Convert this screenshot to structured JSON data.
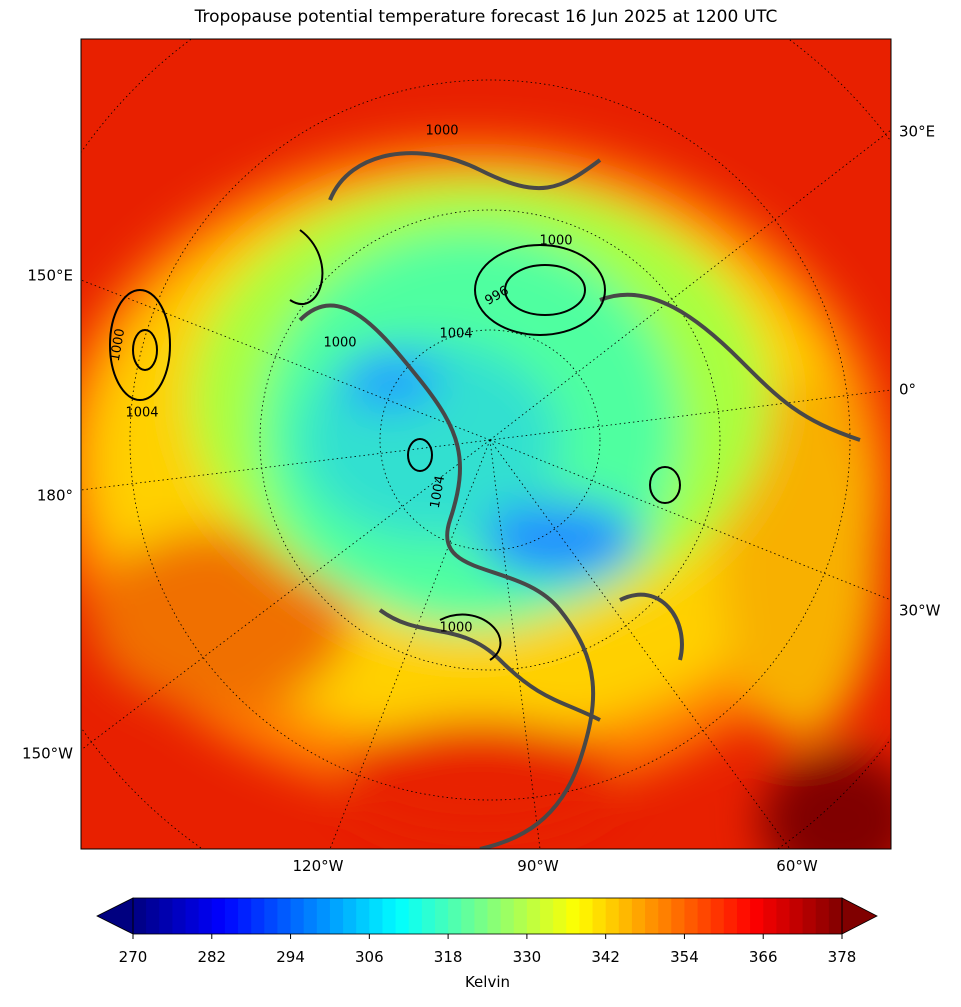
{
  "title": "Tropopause potential temperature forecast 16 Jun 2025 at 1200 UTC",
  "map": {
    "left_labels": [
      "150°E",
      "180°",
      "150°W"
    ],
    "right_labels": [
      "30°E",
      "0°",
      "30°W"
    ],
    "bottom_labels": [
      "120°W",
      "90°W",
      "60°W"
    ],
    "contour_labels": [
      "1000",
      "1004",
      "1000",
      "996",
      "1004",
      "1000",
      "1004",
      "1000",
      "1000"
    ]
  },
  "colorbar": {
    "label": "Kelvin",
    "colormap": "jet",
    "lim": [
      270,
      378
    ],
    "ticks": [
      270,
      282,
      294,
      306,
      318,
      330,
      342,
      354,
      366,
      378
    ]
  }
}
